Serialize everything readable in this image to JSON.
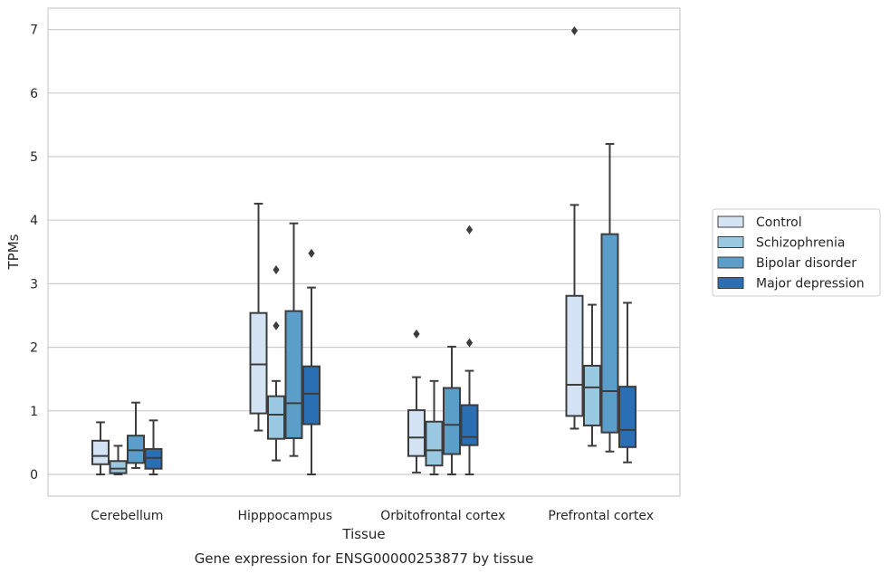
{
  "chart_data": {
    "type": "box",
    "xlabel": "Tissue",
    "ylabel": "TPMs",
    "caption": "Gene expression for ENSG00000253877 by tissue",
    "ylim": [
      -0.33,
      7.35
    ],
    "yticks": [
      0,
      1,
      2,
      3,
      4,
      5,
      6,
      7
    ],
    "grid": "horizontal",
    "legend_position": "right",
    "categories": [
      "Cerebellum",
      "Hipppocampus",
      "Orbitofrontal cortex",
      "Prefrontal cortex"
    ],
    "series": [
      {
        "name": "Control",
        "color": "#d3e3f3",
        "boxes": [
          {
            "whisker_low": 0.0,
            "q1": 0.16,
            "median": 0.29,
            "q3": 0.53,
            "whisker_high": 0.82,
            "outliers": []
          },
          {
            "whisker_low": 0.69,
            "q1": 0.96,
            "median": 1.73,
            "q3": 2.54,
            "whisker_high": 4.26,
            "outliers": []
          },
          {
            "whisker_low": 0.03,
            "q1": 0.29,
            "median": 0.58,
            "q3": 1.01,
            "whisker_high": 1.53,
            "outliers": [
              2.21
            ]
          },
          {
            "whisker_low": 0.72,
            "q1": 0.92,
            "median": 1.41,
            "q3": 2.81,
            "whisker_high": 4.24,
            "outliers": [
              6.98
            ]
          }
        ]
      },
      {
        "name": "Schizophrenia",
        "color": "#9ac8e0",
        "boxes": [
          {
            "whisker_low": 0.0,
            "q1": 0.02,
            "median": 0.09,
            "q3": 0.21,
            "whisker_high": 0.45,
            "outliers": []
          },
          {
            "whisker_low": 0.22,
            "q1": 0.56,
            "median": 0.94,
            "q3": 1.23,
            "whisker_high": 1.47,
            "outliers": [
              2.34,
              3.22
            ]
          },
          {
            "whisker_low": 0.0,
            "q1": 0.14,
            "median": 0.38,
            "q3": 0.83,
            "whisker_high": 1.47,
            "outliers": []
          },
          {
            "whisker_low": 0.45,
            "q1": 0.77,
            "median": 1.37,
            "q3": 1.71,
            "whisker_high": 2.67,
            "outliers": []
          }
        ]
      },
      {
        "name": "Bipolar disorder",
        "color": "#5a9ec9",
        "boxes": [
          {
            "whisker_low": 0.1,
            "q1": 0.18,
            "median": 0.38,
            "q3": 0.61,
            "whisker_high": 1.13,
            "outliers": []
          },
          {
            "whisker_low": 0.29,
            "q1": 0.57,
            "median": 1.12,
            "q3": 2.57,
            "whisker_high": 3.95,
            "outliers": []
          },
          {
            "whisker_low": 0.0,
            "q1": 0.32,
            "median": 0.78,
            "q3": 1.36,
            "whisker_high": 2.01,
            "outliers": []
          },
          {
            "whisker_low": 0.36,
            "q1": 0.66,
            "median": 1.31,
            "q3": 3.78,
            "whisker_high": 5.2,
            "outliers": []
          }
        ]
      },
      {
        "name": "Major depression",
        "color": "#2a6fb3",
        "boxes": [
          {
            "whisker_low": 0.0,
            "q1": 0.09,
            "median": 0.26,
            "q3": 0.4,
            "whisker_high": 0.85,
            "outliers": []
          },
          {
            "whisker_low": 0.0,
            "q1": 0.79,
            "median": 1.27,
            "q3": 1.7,
            "whisker_high": 2.94,
            "outliers": [
              3.48
            ]
          },
          {
            "whisker_low": 0.0,
            "q1": 0.46,
            "median": 0.59,
            "q3": 1.09,
            "whisker_high": 1.63,
            "outliers": [
              2.07,
              3.85
            ]
          },
          {
            "whisker_low": 0.19,
            "q1": 0.43,
            "median": 0.7,
            "q3": 1.38,
            "whisker_high": 2.7,
            "outliers": []
          }
        ]
      }
    ]
  }
}
